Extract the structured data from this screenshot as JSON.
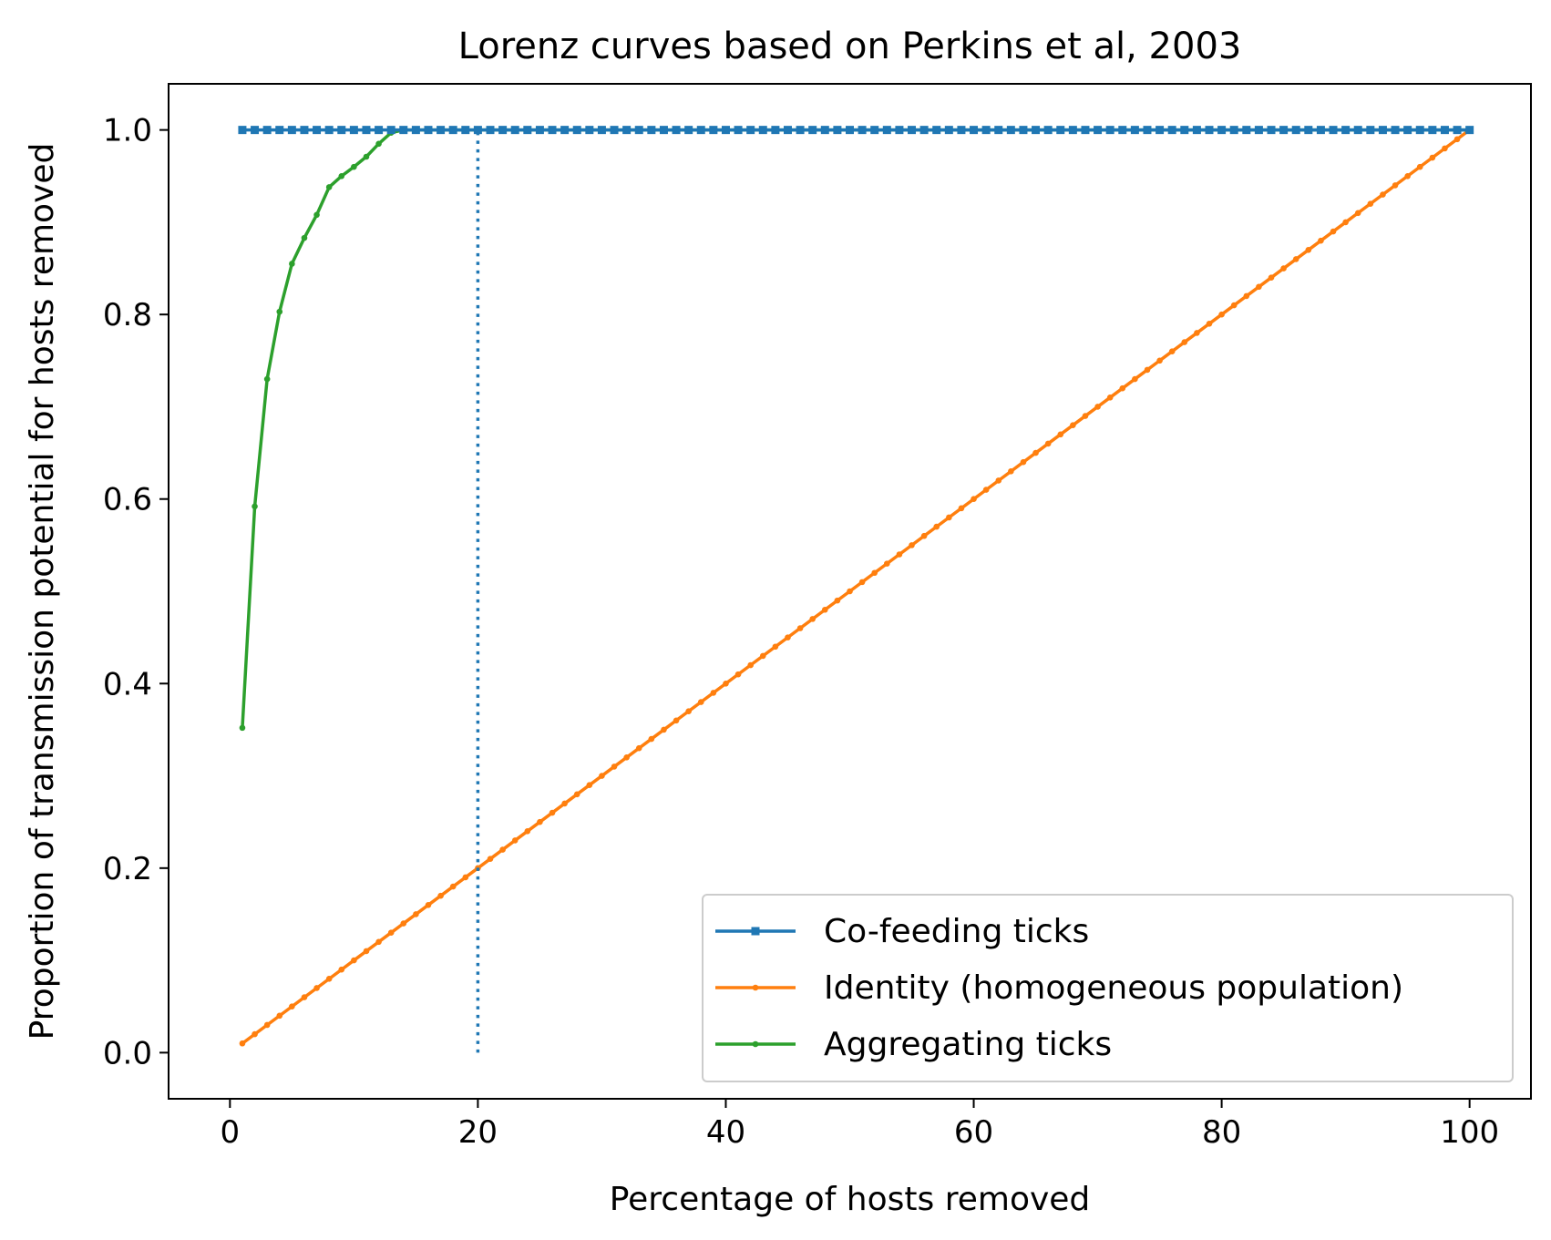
{
  "chart_data": {
    "type": "line",
    "title": "Lorenz curves based on Perkins et al, 2003",
    "xlabel": "Percentage of hosts removed",
    "ylabel": "Proportion of transmission potential for hosts removed",
    "xlim": [
      -4.95,
      104.95
    ],
    "ylim": [
      -0.05,
      1.05
    ],
    "xticks": [
      0,
      20,
      40,
      60,
      80,
      100
    ],
    "xtick_labels": [
      "0",
      "20",
      "40",
      "60",
      "80",
      "100"
    ],
    "yticks": [
      0.0,
      0.2,
      0.4,
      0.6,
      0.8,
      1.0
    ],
    "ytick_labels": [
      "0.0",
      "0.2",
      "0.4",
      "0.6",
      "0.8",
      "1.0"
    ],
    "grid": false,
    "legend_position": "lower-right",
    "series": [
      {
        "name": "Co-feeding ticks",
        "color": "#1f77b4",
        "marker": "square",
        "x_range": [
          1,
          100
        ],
        "constant_y": 1.0
      },
      {
        "name": "Identity (homogeneous population)",
        "color": "#ff7f0e",
        "marker": "dot",
        "x_range": [
          1,
          100
        ],
        "slope": 0.01
      },
      {
        "name": "Aggregating ticks",
        "color": "#2ca02c",
        "marker": "dot",
        "x": [
          1,
          2,
          3,
          4,
          5,
          6,
          7,
          8,
          9,
          10,
          11,
          12,
          13,
          14,
          15,
          20,
          30,
          40,
          50,
          60,
          70,
          80,
          90,
          100
        ],
        "y": [
          0.352,
          0.592,
          0.73,
          0.803,
          0.855,
          0.883,
          0.908,
          0.938,
          0.95,
          0.96,
          0.971,
          0.985,
          0.997,
          1.0,
          1.0,
          1.0,
          1.0,
          1.0,
          1.0,
          1.0,
          1.0,
          1.0,
          1.0,
          1.0
        ]
      }
    ],
    "reference_lines": [
      {
        "type": "vertical",
        "x": 20,
        "y_range": [
          0.0,
          1.0
        ],
        "color": "#1f77b4",
        "style": "dotted"
      }
    ]
  }
}
